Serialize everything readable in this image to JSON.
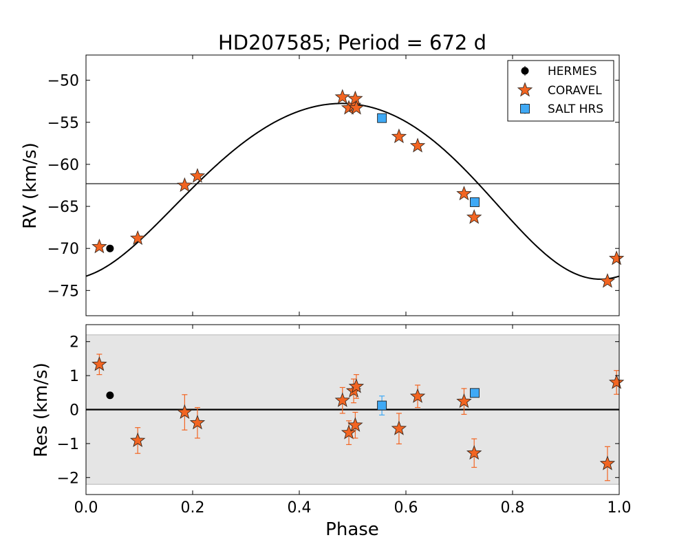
{
  "chart_data": {
    "type": "scatter",
    "title": "HD207585; Period = 672 d",
    "xlabel": "Phase",
    "xlim": [
      0.0,
      1.0
    ],
    "xticks": [
      0.0,
      0.2,
      0.4,
      0.6,
      0.8,
      1.0
    ],
    "xtick_labels": [
      "0.0",
      "0.2",
      "0.4",
      "0.6",
      "0.8",
      "1.0"
    ],
    "legend": {
      "placement": "top-right",
      "entries": [
        {
          "name": "HERMES",
          "marker": "circle",
          "color": "#000000"
        },
        {
          "name": "CORAVEL",
          "marker": "star",
          "color": "#f26522"
        },
        {
          "name": "SALT HRS",
          "marker": "square",
          "color": "#3fa9f5"
        }
      ]
    },
    "rv_panel": {
      "ylabel": "RV (km/s)",
      "ylim": [
        -78,
        -47
      ],
      "yticks": [
        -50,
        -55,
        -60,
        -65,
        -70,
        -75
      ],
      "ytick_labels": [
        "−50",
        "−55",
        "−60",
        "−65",
        "−70",
        "−75"
      ],
      "systemic_velocity": -62.3,
      "model": {
        "gamma": -62.3,
        "K": 10.45,
        "e": 0.09,
        "omega_deg": 165,
        "T0_phase": 0.93
      },
      "series": [
        {
          "name": "HERMES",
          "x": [
            0.045
          ],
          "y": [
            -70.0
          ]
        },
        {
          "name": "CORAVEL",
          "x": [
            0.025,
            0.097,
            0.185,
            0.209,
            0.481,
            0.493,
            0.502,
            0.505,
            0.507,
            0.587,
            0.622,
            0.709,
            0.728,
            0.978,
            0.995
          ],
          "y": [
            -69.8,
            -68.8,
            -62.5,
            -61.4,
            -52.0,
            -53.3,
            -53.0,
            -52.2,
            -53.3,
            -56.7,
            -57.8,
            -63.5,
            -66.3,
            -73.9,
            -71.2
          ]
        },
        {
          "name": "SALT HRS",
          "x": [
            0.555,
            0.729
          ],
          "y": [
            -54.5,
            -64.5
          ]
        }
      ]
    },
    "residual_panel": {
      "ylabel": "Res (km/s)",
      "ylim": [
        -2.5,
        2.5
      ],
      "yticks": [
        2,
        1,
        0,
        -1,
        -2
      ],
      "ytick_labels": [
        "2",
        "1",
        "0",
        "−1",
        "−2"
      ],
      "band": [
        -2.2,
        2.2
      ],
      "series": [
        {
          "name": "HERMES",
          "x": [
            0.045
          ],
          "y": [
            0.42
          ],
          "err": [
            0.0
          ]
        },
        {
          "name": "CORAVEL",
          "x": [
            0.025,
            0.097,
            0.185,
            0.209,
            0.481,
            0.493,
            0.502,
            0.505,
            0.507,
            0.587,
            0.622,
            0.709,
            0.728,
            0.978,
            0.995
          ],
          "y": [
            1.33,
            -0.91,
            -0.08,
            -0.39,
            0.27,
            -0.68,
            0.55,
            -0.46,
            0.68,
            -0.56,
            0.39,
            0.24,
            -1.28,
            -1.59,
            0.8
          ],
          "err": [
            0.3,
            0.38,
            0.52,
            0.45,
            0.38,
            0.35,
            0.35,
            0.38,
            0.35,
            0.45,
            0.33,
            0.38,
            0.42,
            0.5,
            0.35
          ]
        },
        {
          "name": "SALT HRS",
          "x": [
            0.555,
            0.729
          ],
          "y": [
            0.12,
            0.49
          ],
          "err": [
            0.28,
            0.0
          ]
        }
      ]
    }
  }
}
